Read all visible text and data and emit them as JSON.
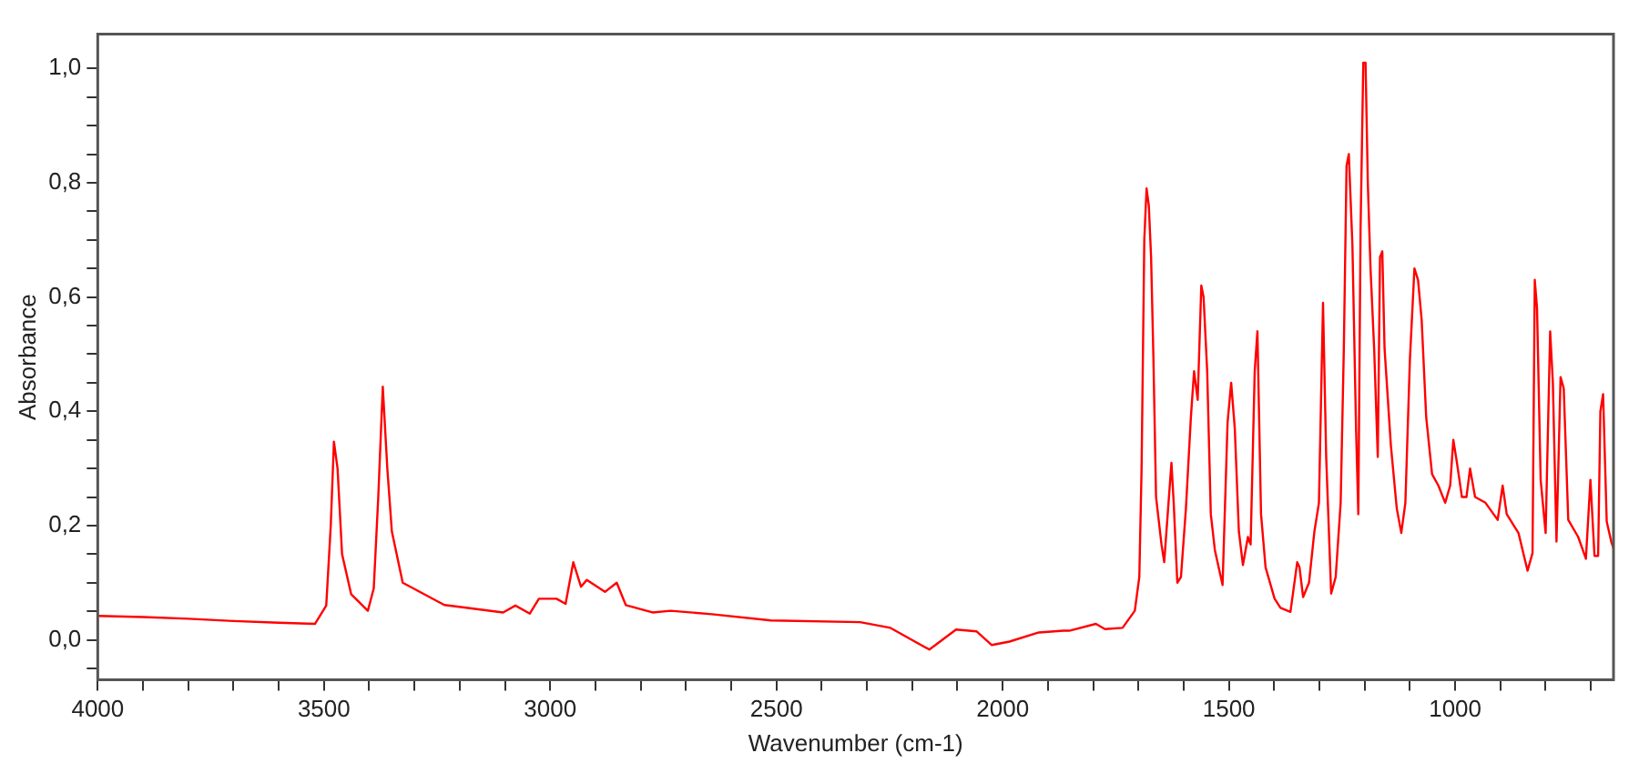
{
  "chart_data": {
    "type": "line",
    "xlabel": "Wavenumber (cm-1)",
    "ylabel": "Absorbance",
    "xlim": [
      4000,
      650
    ],
    "ylim": [
      -0.07,
      1.06
    ],
    "xticks": [
      4000,
      {
        "value": 3900,
        "label": null
      },
      {
        "value": 3800,
        "label": null
      },
      {
        "value": 3700,
        "label": null
      },
      {
        "value": 3600,
        "label": null
      },
      3500,
      {
        "value": 3400,
        "label": null
      },
      {
        "value": 3300,
        "label": null
      },
      {
        "value": 3200,
        "label": null
      },
      {
        "value": 3100,
        "label": null
      },
      3000,
      {
        "value": 2900,
        "label": null
      },
      {
        "value": 2800,
        "label": null
      },
      {
        "value": 2700,
        "label": null
      },
      {
        "value": 2600,
        "label": null
      },
      2500,
      {
        "value": 2400,
        "label": null
      },
      {
        "value": 2300,
        "label": null
      },
      {
        "value": 2200,
        "label": null
      },
      {
        "value": 2100,
        "label": null
      },
      2000,
      {
        "value": 1900,
        "label": null
      },
      {
        "value": 1800,
        "label": null
      },
      {
        "value": 1700,
        "label": null
      },
      {
        "value": 1600,
        "label": null
      },
      1500,
      {
        "value": 1400,
        "label": null
      },
      {
        "value": 1300,
        "label": null
      },
      {
        "value": 1200,
        "label": null
      },
      {
        "value": 1100,
        "label": null
      },
      1000,
      {
        "value": 900,
        "label": null
      },
      {
        "value": 800,
        "label": null
      },
      {
        "value": 700,
        "label": null
      }
    ],
    "yticks": [
      {
        "value": -0.05,
        "label": null
      },
      {
        "value": 0,
        "label": "0,0"
      },
      {
        "value": 0.05,
        "label": null
      },
      {
        "value": 0.1,
        "label": null
      },
      {
        "value": 0.15,
        "label": null
      },
      {
        "value": 0.2,
        "label": "0,2"
      },
      {
        "value": 0.25,
        "label": null
      },
      {
        "value": 0.3,
        "label": null
      },
      {
        "value": 0.35,
        "label": null
      },
      {
        "value": 0.4,
        "label": "0,4"
      },
      {
        "value": 0.45,
        "label": null
      },
      {
        "value": 0.5,
        "label": null
      },
      {
        "value": 0.55,
        "label": null
      },
      {
        "value": 0.6,
        "label": "0,6"
      },
      {
        "value": 0.65,
        "label": null
      },
      {
        "value": 0.7,
        "label": null
      },
      {
        "value": 0.75,
        "label": null
      },
      {
        "value": 0.8,
        "label": "0,8"
      },
      {
        "value": 0.85,
        "label": null
      },
      {
        "value": 0.9,
        "label": null
      },
      {
        "value": 0.95,
        "label": null
      },
      {
        "value": 1.0,
        "label": "1,0"
      }
    ],
    "grid": false,
    "legend": false,
    "marker": "none",
    "line_style": "solid",
    "series": [
      {
        "color": "#ff0000",
        "x": [
          4000,
          3900,
          3800,
          3700,
          3600,
          3520,
          3495,
          3485,
          3478,
          3470,
          3460,
          3440,
          3403,
          3390,
          3380,
          3370,
          3360,
          3350,
          3326,
          3234,
          3104,
          3077,
          3045,
          3025,
          2986,
          2966,
          2949,
          2932,
          2919,
          2879,
          2853,
          2833,
          2774,
          2734,
          2643,
          2512,
          2315,
          2248,
          2162,
          2103,
          2058,
          2024,
          1985,
          1920,
          1866,
          1853,
          1794,
          1774,
          1735,
          1708,
          1698,
          1693,
          1687,
          1682,
          1677,
          1672,
          1667,
          1661,
          1649,
          1643,
          1627,
          1622,
          1614,
          1606,
          1595,
          1584,
          1577,
          1569,
          1561,
          1556,
          1548,
          1540,
          1531,
          1514,
          1503,
          1495,
          1487,
          1478,
          1469,
          1458,
          1452,
          1443,
          1437,
          1429,
          1419,
          1399,
          1386,
          1364,
          1349,
          1344,
          1336,
          1323,
          1311,
          1301,
          1292,
          1285,
          1274,
          1264,
          1253,
          1246,
          1240,
          1235,
          1227,
          1219,
          1214,
          1209,
          1203,
          1198,
          1193,
          1187,
          1179,
          1171,
          1166,
          1161,
          1156,
          1142,
          1129,
          1119,
          1110,
          1100,
          1090,
          1082,
          1074,
          1064,
          1051,
          1037,
          1022,
          1011,
          1004,
          996,
          985,
          975,
          967,
          956,
          933,
          906,
          895,
          886,
          860,
          840,
          829,
          824,
          819,
          811,
          800,
          790,
          784,
          776,
          767,
          760,
          750,
          728,
          711,
          701,
          692,
          684,
          679,
          673,
          665,
          655,
          650
        ],
        "values": [
          0.042,
          0.04,
          0.037,
          0.033,
          0.03,
          0.028,
          0.06,
          0.2,
          0.347,
          0.3,
          0.15,
          0.08,
          0.051,
          0.09,
          0.25,
          0.443,
          0.3,
          0.19,
          0.1,
          0.061,
          0.048,
          0.06,
          0.046,
          0.072,
          0.072,
          0.063,
          0.136,
          0.093,
          0.105,
          0.084,
          0.1,
          0.061,
          0.048,
          0.051,
          0.045,
          0.034,
          0.031,
          0.021,
          -0.017,
          0.018,
          0.015,
          -0.009,
          -0.003,
          0.013,
          0.016,
          0.016,
          0.028,
          0.019,
          0.021,
          0.051,
          0.11,
          0.3,
          0.7,
          0.79,
          0.76,
          0.67,
          0.5,
          0.25,
          0.167,
          0.136,
          0.31,
          0.24,
          0.1,
          0.11,
          0.23,
          0.39,
          0.47,
          0.42,
          0.62,
          0.6,
          0.47,
          0.22,
          0.157,
          0.096,
          0.38,
          0.45,
          0.37,
          0.19,
          0.131,
          0.18,
          0.167,
          0.47,
          0.54,
          0.22,
          0.127,
          0.072,
          0.056,
          0.049,
          0.136,
          0.127,
          0.075,
          0.1,
          0.19,
          0.24,
          0.59,
          0.32,
          0.081,
          0.11,
          0.24,
          0.51,
          0.83,
          0.85,
          0.69,
          0.37,
          0.22,
          0.72,
          1.01,
          1.01,
          0.8,
          0.65,
          0.51,
          0.32,
          0.67,
          0.68,
          0.51,
          0.34,
          0.23,
          0.187,
          0.24,
          0.49,
          0.65,
          0.63,
          0.56,
          0.39,
          0.29,
          0.27,
          0.24,
          0.27,
          0.35,
          0.31,
          0.25,
          0.25,
          0.3,
          0.25,
          0.24,
          0.21,
          0.27,
          0.22,
          0.187,
          0.121,
          0.152,
          0.63,
          0.58,
          0.28,
          0.187,
          0.54,
          0.45,
          0.172,
          0.46,
          0.44,
          0.21,
          0.18,
          0.142,
          0.28,
          0.147,
          0.147,
          0.4,
          0.43,
          0.207,
          0.172,
          0.16
        ]
      }
    ]
  }
}
